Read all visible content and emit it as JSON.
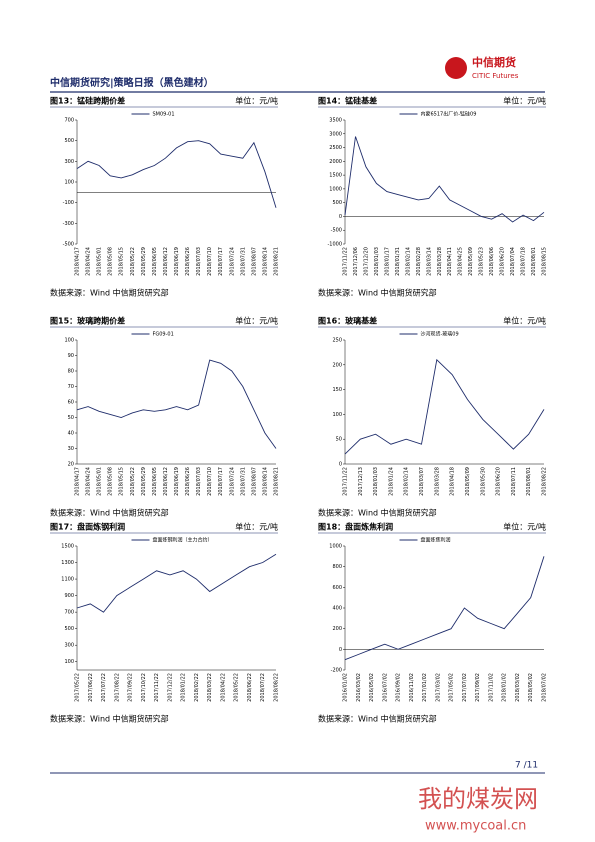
{
  "header": {
    "title": "中信期货研究|策略日报（黑色建材）",
    "logo_cn": "中信期货",
    "logo_en": "CITIC Futures"
  },
  "chart_data": [
    {
      "type": "line",
      "title": "图13：锰硅跨期价差",
      "unit": "单位：元/吨",
      "source": "数据来源：Wind  中信期货研究部",
      "categories": [
        "2018/04/17",
        "2018/04/24",
        "2018/05/01",
        "2018/05/08",
        "2018/05/15",
        "2018/05/22",
        "2018/05/29",
        "2018/06/05",
        "2018/06/12",
        "2018/06/19",
        "2018/06/26",
        "2018/07/03",
        "2018/07/10",
        "2018/07/17",
        "2018/07/24",
        "2018/07/31",
        "2018/08/07",
        "2018/08/14",
        "2018/08/21"
      ],
      "series": [
        {
          "name": "SM09-01",
          "color": "#1f2d6b",
          "values": [
            230,
            300,
            260,
            160,
            140,
            170,
            220,
            260,
            330,
            430,
            490,
            500,
            470,
            370,
            350,
            330,
            480,
            200,
            -150
          ]
        }
      ],
      "ylim": [
        -500,
        700
      ],
      "yticks": [
        -500,
        -300,
        -100,
        100,
        300,
        500,
        700
      ]
    },
    {
      "type": "line",
      "title": "图14：锰硅基差",
      "unit": "单位：元/吨",
      "source": "数据来源：Wind  中信期货研究部",
      "categories": [
        "2017/11/22",
        "2017/12/06",
        "2017/12/20",
        "2018/01/03",
        "2018/01/17",
        "2018/01/31",
        "2018/02/14",
        "2018/02/28",
        "2018/03/14",
        "2018/03/28",
        "2018/04/11",
        "2018/04/25",
        "2018/05/09",
        "2018/05/23",
        "2018/06/06",
        "2018/06/20",
        "2018/07/04",
        "2018/07/18",
        "2018/08/01",
        "2018/08/15"
      ],
      "series": [
        {
          "name": "内蒙6517出厂价-锰硅09",
          "color": "#1f2d6b",
          "values": [
            50,
            2900,
            1800,
            1200,
            900,
            800,
            700,
            600,
            650,
            1100,
            600,
            400,
            200,
            0,
            -100,
            100,
            -200,
            50,
            -150,
            150
          ]
        }
      ],
      "ylim": [
        -1000,
        3500
      ],
      "yticks": [
        -1000,
        -500,
        0,
        500,
        1000,
        1500,
        2000,
        2500,
        3000,
        3500
      ]
    },
    {
      "type": "line",
      "title": "图15：玻璃跨期价差",
      "unit": "单位：元/吨",
      "source": "数据来源：Wind  中信期货研究部",
      "categories": [
        "2018/04/17",
        "2018/04/24",
        "2018/05/01",
        "2018/05/08",
        "2018/05/15",
        "2018/05/22",
        "2018/05/29",
        "2018/06/05",
        "2018/06/12",
        "2018/06/19",
        "2018/06/26",
        "2018/07/03",
        "2018/07/10",
        "2018/07/17",
        "2018/07/24",
        "2018/07/31",
        "2018/08/07",
        "2018/08/14",
        "2018/08/21"
      ],
      "series": [
        {
          "name": "FG09-01",
          "color": "#1f2d6b",
          "values": [
            55,
            57,
            54,
            52,
            50,
            53,
            55,
            54,
            55,
            57,
            55,
            58,
            87,
            85,
            80,
            70,
            55,
            40,
            30
          ]
        }
      ],
      "ylim": [
        20,
        100
      ],
      "yticks": [
        20,
        30,
        40,
        50,
        60,
        70,
        80,
        90,
        100
      ]
    },
    {
      "type": "line",
      "title": "图16：玻璃基差",
      "unit": "单位：元/吨",
      "source": "数据来源：Wind  中信期货研究部",
      "categories": [
        "2017/11/22",
        "2017/12/13",
        "2018/01/03",
        "2018/01/24",
        "2018/02/14",
        "2018/03/07",
        "2018/03/28",
        "2018/04/18",
        "2018/05/09",
        "2018/05/30",
        "2018/06/20",
        "2018/07/11",
        "2018/08/01",
        "2018/08/22"
      ],
      "series": [
        {
          "name": "沙河现货-玻璃09",
          "color": "#1f2d6b",
          "values": [
            20,
            50,
            60,
            40,
            50,
            40,
            210,
            180,
            130,
            90,
            60,
            30,
            60,
            110
          ]
        }
      ],
      "ylim": [
        0,
        250
      ],
      "yticks": [
        0,
        50,
        100,
        150,
        200,
        250
      ]
    },
    {
      "type": "line",
      "title": "图17：盘面炼钢利润",
      "unit": "单位：元/吨",
      "source": "数据来源：Wind  中信期货研究部",
      "categories": [
        "2017/05/22",
        "2017/06/22",
        "2017/07/22",
        "2017/08/22",
        "2017/09/22",
        "2017/10/22",
        "2017/11/22",
        "2017/12/22",
        "2018/01/22",
        "2018/02/22",
        "2018/03/22",
        "2018/04/22",
        "2018/05/22",
        "2018/06/22",
        "2018/07/22",
        "2018/08/22"
      ],
      "series": [
        {
          "name": "盘面炼钢利润（主力合约）",
          "color": "#1f2d6b",
          "values": [
            750,
            800,
            700,
            900,
            1000,
            1100,
            1200,
            1150,
            1200,
            1100,
            950,
            1050,
            1150,
            1250,
            1300,
            1400
          ]
        }
      ],
      "ylim": [
        0,
        1500
      ],
      "yticks": [
        100,
        300,
        500,
        700,
        900,
        1100,
        1300,
        1500
      ]
    },
    {
      "type": "line",
      "title": "图18：盘面炼焦利润",
      "unit": "单位：元/吨",
      "source": "数据来源：Wind  中信期货研究部",
      "categories": [
        "2016/01/02",
        "2016/03/02",
        "2016/05/02",
        "2016/07/02",
        "2016/09/02",
        "2016/11/02",
        "2017/01/02",
        "2017/03/02",
        "2017/05/02",
        "2017/07/02",
        "2017/09/02",
        "2017/11/02",
        "2018/01/02",
        "2018/03/02",
        "2018/05/02",
        "2018/07/02"
      ],
      "series": [
        {
          "name": "盘面炼焦利润",
          "color": "#1f2d6b",
          "values": [
            -100,
            -50,
            0,
            50,
            0,
            50,
            100,
            150,
            200,
            400,
            300,
            250,
            200,
            350,
            500,
            900
          ]
        }
      ],
      "ylim": [
        -200,
        1000
      ],
      "yticks": [
        -200,
        0,
        200,
        400,
        600,
        800,
        1000
      ]
    }
  ],
  "footer": {
    "page": "7 /11"
  },
  "watermark": {
    "text": "我的煤炭网",
    "url": "www.mycoal.cn"
  }
}
